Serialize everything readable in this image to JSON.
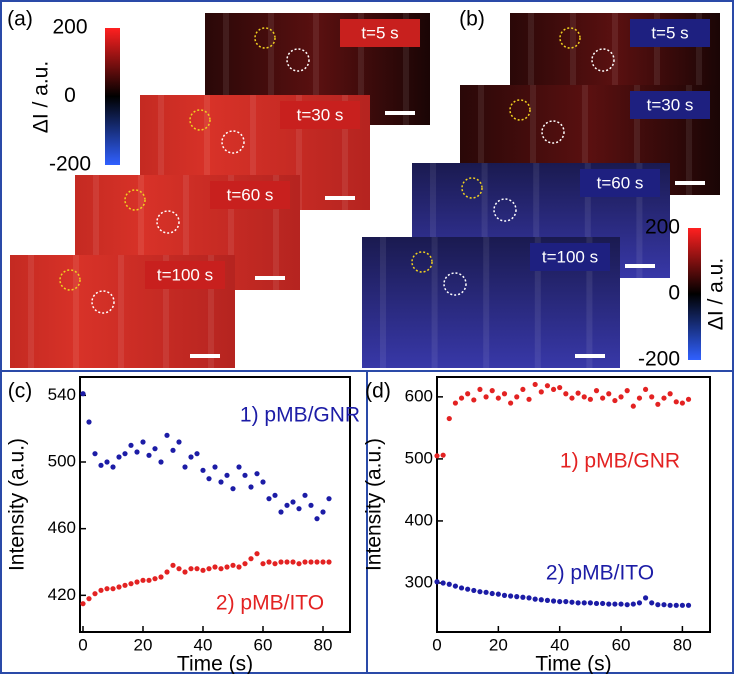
{
  "panels": [
    {
      "label": "(a)",
      "frames": [
        "t=5 s",
        "t=30 s",
        "t=60 s",
        "t=100 s"
      ],
      "colorbar": {
        "title": "ΔI / a.u.",
        "ticks": [
          200,
          0,
          -200
        ]
      }
    },
    {
      "label": "(b)",
      "frames": [
        "t=5 s",
        "t=30 s",
        "t=60 s",
        "t=100 s"
      ],
      "colorbar": {
        "title": "ΔI / a.u.",
        "ticks": [
          200,
          0,
          -200
        ]
      }
    }
  ],
  "chart_data": [
    {
      "type": "scatter",
      "title": "(c)",
      "x_label": "Time (s)",
      "y_label": "Intensity (a.u.)",
      "x": [
        0,
        2,
        4,
        6,
        8,
        10,
        12,
        14,
        16,
        18,
        20,
        22,
        24,
        26,
        28,
        30,
        32,
        34,
        36,
        38,
        40,
        42,
        44,
        46,
        48,
        50,
        52,
        54,
        56,
        58,
        60,
        62,
        64,
        66,
        68,
        70,
        72,
        74,
        76,
        78,
        80,
        82
      ],
      "series": [
        {
          "name": "1) pMB/GNR",
          "color": "#1c1ca6",
          "values": [
            541,
            524,
            505,
            498,
            500,
            497,
            503,
            505,
            510,
            506,
            512,
            504,
            508,
            500,
            516,
            507,
            512,
            497,
            503,
            505,
            495,
            490,
            497,
            488,
            492,
            484,
            497,
            492,
            485,
            493,
            488,
            478,
            480,
            470,
            474,
            476,
            472,
            480,
            474,
            466,
            470,
            478
          ]
        },
        {
          "name": "2) pMB/ITO",
          "color": "#e32222",
          "values": [
            415,
            418,
            421,
            423,
            424,
            424,
            425,
            426,
            427,
            428,
            429,
            429,
            430,
            431,
            434,
            438,
            436,
            434,
            436,
            436,
            435,
            436,
            437,
            436,
            437,
            438,
            437,
            439,
            442,
            445,
            439,
            440,
            439,
            440,
            440,
            440,
            439,
            440,
            440,
            440,
            440,
            440
          ]
        }
      ],
      "xlim": [
        -1,
        89
      ],
      "ylim": [
        398,
        551
      ],
      "xticks": [
        0,
        20,
        40,
        60,
        80
      ],
      "yticks": [
        420,
        460,
        500,
        540
      ]
    },
    {
      "type": "scatter",
      "title": "(d)",
      "x_label": "Time (s)",
      "y_label": "Intensity (a.u.)",
      "x": [
        0,
        2,
        4,
        6,
        8,
        10,
        12,
        14,
        16,
        18,
        20,
        22,
        24,
        26,
        28,
        30,
        32,
        34,
        36,
        38,
        40,
        42,
        44,
        46,
        48,
        50,
        52,
        54,
        56,
        58,
        60,
        62,
        64,
        66,
        68,
        70,
        72,
        74,
        76,
        78,
        80,
        82
      ],
      "series": [
        {
          "name": "1) pMB/GNR",
          "color": "#e32222",
          "values": [
            505,
            506,
            565,
            590,
            598,
            605,
            595,
            612,
            600,
            610,
            598,
            605,
            590,
            600,
            612,
            596,
            620,
            608,
            618,
            612,
            615,
            605,
            598,
            606,
            600,
            596,
            610,
            598,
            605,
            594,
            600,
            610,
            585,
            598,
            612,
            600,
            588,
            598,
            605,
            592,
            590,
            596
          ]
        },
        {
          "name": "2) pMB/ITO",
          "color": "#1c1ca6",
          "values": [
            302,
            300,
            298,
            295,
            292,
            290,
            288,
            286,
            285,
            283,
            282,
            280,
            279,
            278,
            277,
            276,
            274,
            273,
            272,
            271,
            270,
            270,
            269,
            268,
            268,
            268,
            267,
            267,
            266,
            266,
            266,
            265,
            266,
            268,
            276,
            268,
            265,
            265,
            264,
            264,
            264,
            264
          ]
        }
      ],
      "xlim": [
        0,
        89
      ],
      "ylim": [
        221,
        632
      ],
      "xticks": [
        0,
        20,
        40,
        60,
        80
      ],
      "yticks": [
        300,
        400,
        500,
        600
      ]
    }
  ]
}
